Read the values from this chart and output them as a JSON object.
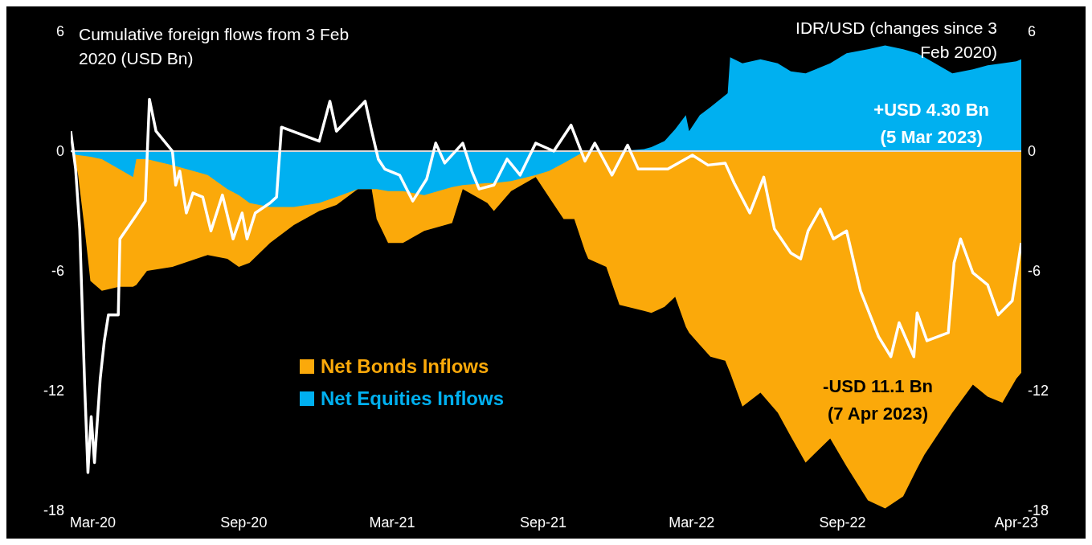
{
  "chart_data": {
    "type": "area",
    "ylabel": "Cumulative foreign flows from 3 Feb 2020 (USD Bn)",
    "y2label": "IDR/USD (changes since 3 Feb 2020)",
    "annotations": [
      "+USD 4.30 Bn\n(5 Mar 2023)",
      "-USD 11.1 Bn\n(7 Apr 2023)"
    ],
    "x": [
      "2020-02-03",
      "2020-02-07",
      "2020-02-12",
      "2020-02-20",
      "2020-02-27",
      "2020-03-12",
      "2020-04-02",
      "2020-04-19",
      "2020-04-23",
      "2020-05-06",
      "2020-06-06",
      "2020-07-19",
      "2020-08-12",
      "2020-08-26",
      "2020-09-08",
      "2020-10-03",
      "2020-11-01",
      "2020-12-02",
      "2020-12-23",
      "2021-01-18",
      "2021-02-04",
      "2021-02-10",
      "2021-02-24",
      "2021-03-14",
      "2021-04-09",
      "2021-05-13",
      "2021-05-26",
      "2021-06-25",
      "2021-07-03",
      "2021-07-24",
      "2021-08-23",
      "2021-09-08",
      "2021-09-26",
      "2021-10-09",
      "2021-10-22",
      "2021-10-26",
      "2021-11-17",
      "2021-12-03",
      "2022-01-02",
      "2022-01-11",
      "2022-01-27",
      "2022-02-09",
      "2022-02-22",
      "2022-02-26",
      "2022-03-11",
      "2022-03-24",
      "2022-04-11",
      "2022-04-14",
      "2022-04-17",
      "2022-05-02",
      "2022-05-24",
      "2022-06-14",
      "2022-06-30",
      "2022-07-18",
      "2022-08-17",
      "2022-09-06",
      "2022-10-02",
      "2022-10-23",
      "2022-11-14",
      "2022-12-01",
      "2022-12-10",
      "2023-01-13",
      "2023-02-07",
      "2023-02-25",
      "2023-03-15",
      "2023-04-01",
      "2023-04-07"
    ],
    "series": [
      {
        "name": "Net Bonds Inflows",
        "color": "#fba90a",
        "values": [
          0,
          -0.16,
          -1.2,
          -3.9,
          -6.5,
          -7.0,
          -6.8,
          -6.8,
          -6.7,
          -6.0,
          -5.8,
          -5.2,
          -5.4,
          -5.8,
          -5.6,
          -4.6,
          -3.7,
          -3.0,
          -2.7,
          -1.9,
          -1.9,
          -3.4,
          -4.6,
          -4.6,
          -4.0,
          -3.6,
          -1.9,
          -2.6,
          -3.0,
          -2.0,
          -1.3,
          -2.3,
          -3.4,
          -3.4,
          -5.0,
          -5.4,
          -5.8,
          -7.7,
          -8.0,
          -8.1,
          -7.8,
          -7.3,
          -8.8,
          -9.1,
          -9.7,
          -10.3,
          -10.5,
          -10.8,
          -11.1,
          -12.8,
          -12.1,
          -13.1,
          -14.3,
          -15.6,
          -14.4,
          -15.8,
          -17.5,
          -17.9,
          -17.3,
          -15.9,
          -15.2,
          -13.1,
          -11.7,
          -12.3,
          -12.6,
          -11.4,
          -11.1
        ]
      },
      {
        "name": "Net Equities Inflows",
        "color": "#00b0f0",
        "values": [
          0,
          -0.16,
          -0.2,
          -0.24,
          -0.28,
          -0.4,
          -0.9,
          -1.3,
          -0.4,
          -0.4,
          -0.7,
          -1.2,
          -1.9,
          -2.2,
          -2.6,
          -2.8,
          -2.8,
          -2.6,
          -2.3,
          -1.9,
          -1.9,
          -1.9,
          -2.0,
          -2.0,
          -2.2,
          -1.8,
          -1.7,
          -1.6,
          -1.6,
          -1.5,
          -1.2,
          -1.0,
          -0.6,
          -0.3,
          0,
          0,
          0,
          0,
          0.1,
          0.2,
          0.5,
          1.1,
          1.8,
          1.0,
          1.8,
          2.2,
          2.8,
          2.9,
          4.7,
          4.4,
          4.6,
          4.4,
          4.0,
          3.9,
          4.4,
          4.9,
          5.1,
          5.3,
          5.1,
          4.9,
          4.7,
          3.9,
          4.1,
          4.3,
          4.4,
          4.5,
          4.6
        ]
      },
      {
        "type": "line",
        "axis": "y2",
        "color": "#ffffff",
        "x": [
          "2020-02-03",
          "2020-02-09",
          "2020-02-14",
          "2020-02-20",
          "2020-02-24",
          "2020-02-28",
          "2020-03-03",
          "2020-03-10",
          "2020-03-15",
          "2020-03-20",
          "2020-04-01",
          "2020-04-03",
          "2020-04-23",
          "2020-05-04",
          "2020-05-09",
          "2020-05-17",
          "2020-06-06",
          "2020-06-10",
          "2020-06-15",
          "2020-06-23",
          "2020-07-01",
          "2020-07-13",
          "2020-07-23",
          "2020-08-06",
          "2020-08-19",
          "2020-08-30",
          "2020-09-05",
          "2020-09-15",
          "2020-10-03",
          "2020-10-11",
          "2020-10-17",
          "2020-12-02",
          "2020-12-15",
          "2020-12-23",
          "2021-01-27",
          "2021-02-04",
          "2021-02-12",
          "2021-02-20",
          "2021-03-10",
          "2021-03-26",
          "2021-04-12",
          "2021-04-23",
          "2021-05-04",
          "2021-05-26",
          "2021-06-06",
          "2021-06-15",
          "2021-07-03",
          "2021-07-19",
          "2021-08-04",
          "2021-08-23",
          "2021-09-14",
          "2021-10-05",
          "2021-10-22",
          "2021-11-03",
          "2021-11-24",
          "2021-12-13",
          "2021-12-26",
          "2022-01-31",
          "2022-03-02",
          "2022-03-21",
          "2022-04-11",
          "2022-04-22",
          "2022-05-11",
          "2022-05-28",
          "2022-06-10",
          "2022-06-30",
          "2022-07-12",
          "2022-07-21",
          "2022-08-05",
          "2022-08-21",
          "2022-09-06",
          "2022-09-23",
          "2022-10-15",
          "2022-10-30",
          "2022-11-09",
          "2022-11-27",
          "2022-12-01",
          "2022-12-13",
          "2023-01-08",
          "2023-01-15",
          "2023-01-23",
          "2023-02-07",
          "2023-02-25",
          "2023-03-10",
          "2023-03-27",
          "2023-04-07"
        ],
        "values": [
          1.0,
          -0.9,
          -3.9,
          -11.7,
          -16.1,
          -13.3,
          -15.6,
          -11.4,
          -9.5,
          -8.2,
          -8.2,
          -4.4,
          -3.2,
          -2.5,
          2.6,
          1.0,
          0.0,
          -1.7,
          -1.0,
          -3.1,
          -2.1,
          -2.3,
          -4.0,
          -2.2,
          -4.4,
          -3.1,
          -4.4,
          -3.1,
          -2.6,
          -2.3,
          1.2,
          0.5,
          2.5,
          1.0,
          2.5,
          1.0,
          -0.4,
          -0.9,
          -1.2,
          -2.5,
          -1.4,
          0.4,
          -0.6,
          0.4,
          -1.0,
          -1.9,
          -1.7,
          -0.4,
          -1.2,
          0.4,
          0.0,
          1.3,
          -0.5,
          0.4,
          -1.2,
          0.3,
          -0.9,
          -0.9,
          -0.2,
          -0.7,
          -0.6,
          -1.6,
          -3.1,
          -1.3,
          -3.9,
          -5.1,
          -5.4,
          -4.0,
          -2.9,
          -4.4,
          -4.0,
          -7.0,
          -9.3,
          -10.3,
          -8.6,
          -10.3,
          -8.1,
          -9.5,
          -9.1,
          -5.6,
          -4.4,
          -6.1,
          -6.7,
          -8.2,
          -7.5,
          -4.6
        ]
      }
    ],
    "xlim": [
      "2020-02-03",
      "2023-04-07"
    ],
    "xticks": [
      {
        "value": "2020-03-01",
        "label": "Mar-20"
      },
      {
        "value": "2020-09-01",
        "label": "Sep-20"
      },
      {
        "value": "2021-03-01",
        "label": "Mar-21"
      },
      {
        "value": "2021-09-01",
        "label": "Sep-21"
      },
      {
        "value": "2022-03-01",
        "label": "Mar-22"
      },
      {
        "value": "2022-09-01",
        "label": "Sep-22"
      },
      {
        "value": "2023-04-01",
        "label": "Apr-23"
      }
    ],
    "ylim": [
      -18,
      6
    ],
    "yticks": [
      -18,
      -12,
      -6,
      0,
      6
    ],
    "y2lim": [
      -18,
      6
    ],
    "y2ticks": [
      -18,
      -12,
      -6,
      0,
      6
    ],
    "ref_lines": [
      {
        "axis": "y",
        "value": 0,
        "color": "#d9d9d9"
      }
    ],
    "legend": "bottom"
  }
}
